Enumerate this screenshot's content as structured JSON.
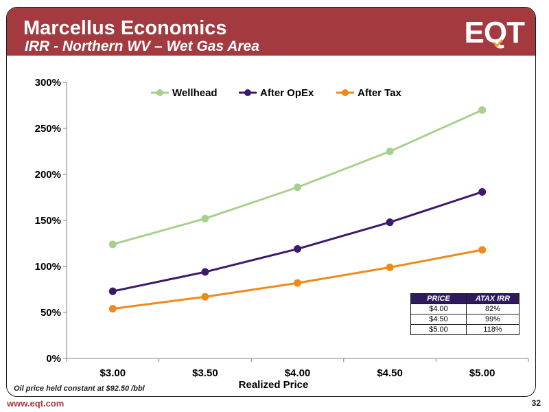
{
  "header": {
    "title": "Marcellus Economics",
    "subtitle": "IRR - Northern WV – Wet Gas Area",
    "logo_text": "EQT",
    "background_color": "#a33a3f"
  },
  "chart_data": {
    "type": "line",
    "categories": [
      "$3.00",
      "$3.50",
      "$4.00",
      "$4.50",
      "$5.00"
    ],
    "xlabel": "Realized Price",
    "ylabel": "",
    "ylim": [
      0,
      3.0
    ],
    "yticks": [
      {
        "value": 0,
        "label": "0%"
      },
      {
        "value": 0.5,
        "label": "50%"
      },
      {
        "value": 1.0,
        "label": "100%"
      },
      {
        "value": 1.5,
        "label": "150%"
      },
      {
        "value": 2.0,
        "label": "200%"
      },
      {
        "value": 2.5,
        "label": "250%"
      },
      {
        "value": 3.0,
        "label": "300%"
      }
    ],
    "grid": false,
    "legend_position": "top",
    "series": [
      {
        "name": "Wellhead",
        "color": "#a8d08d",
        "values": [
          1.24,
          1.52,
          1.86,
          2.25,
          2.7
        ]
      },
      {
        "name": "After OpEx",
        "color": "#3b1a6b",
        "values": [
          0.73,
          0.94,
          1.19,
          1.48,
          1.81
        ]
      },
      {
        "name": "After Tax",
        "color": "#ee8a1a",
        "values": [
          0.54,
          0.67,
          0.82,
          0.99,
          1.18
        ]
      }
    ]
  },
  "table": {
    "headers": [
      "PRICE",
      "ATAX IRR"
    ],
    "rows": [
      [
        "$4.00",
        "82%"
      ],
      [
        "$4.50",
        "99%"
      ],
      [
        "$5.00",
        "118%"
      ]
    ]
  },
  "footer": {
    "note": "Oil price held constant at $92.50 /bbl",
    "website": "www.eqt.com",
    "page_number": "32"
  }
}
